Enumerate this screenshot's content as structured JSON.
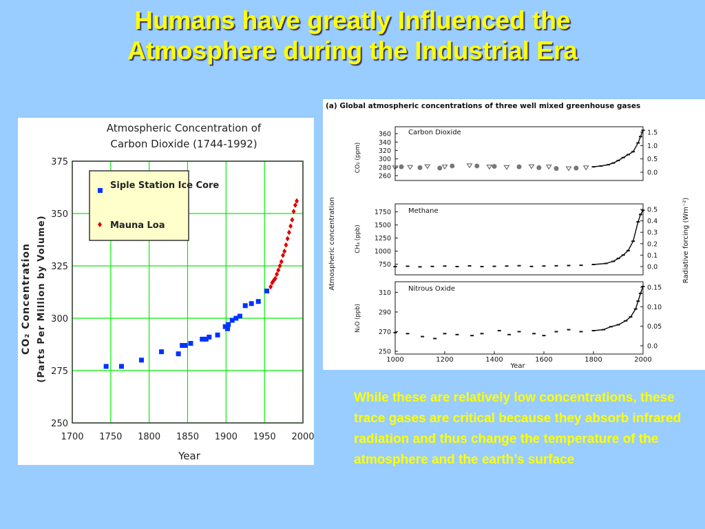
{
  "slide": {
    "title_line1": "Humans have greatly Influenced the",
    "title_line2": "Atmosphere during the Industrial Era",
    "caption": "While these are relatively low concentrations,  these trace gases are critical because they absorb infrared radiation and thus change the temperature of the atmosphere and the earth’s surface",
    "colors": {
      "background": "#99ccff",
      "title": "#ffff00",
      "caption": "#ffff00",
      "grid": "#00ee00"
    }
  },
  "chart_data": [
    {
      "type": "scatter",
      "title_line1": "Atmospheric Concentration of",
      "title_line2": "Carbon Dioxide (1744-1992)",
      "xlabel": "Year",
      "ylabel_line1": "CO₂  Concentration",
      "ylabel_line2": "(Parts Per Million by Volume)",
      "xlim": [
        1700,
        2000
      ],
      "ylim": [
        250,
        375
      ],
      "x_ticks": [
        "1700",
        "1750",
        "1800",
        "1850",
        "1900",
        "1950",
        "2000"
      ],
      "y_ticks": [
        "250",
        "275",
        "300",
        "325",
        "350",
        "375"
      ],
      "grid": true,
      "legend_position": "top-left",
      "series": [
        {
          "name": "Siple Station Ice Core",
          "color": "#0033ff",
          "marker": "square",
          "x": [
            1744,
            1764,
            1790,
            1816,
            1838,
            1843,
            1847,
            1854,
            1869,
            1874,
            1878,
            1889,
            1899,
            1902,
            1903,
            1908,
            1913,
            1918,
            1925,
            1933,
            1942,
            1953
          ],
          "y": [
            277,
            277,
            280,
            284,
            283,
            287,
            287,
            288,
            290,
            290,
            291,
            292,
            296,
            295,
            297,
            299,
            300,
            301,
            306,
            307,
            308,
            313
          ]
        },
        {
          "name": "Mauna Loa",
          "color": "#dd0000",
          "marker": "diamond",
          "x": [
            1958,
            1960,
            1962,
            1964,
            1966,
            1968,
            1970,
            1972,
            1974,
            1976,
            1978,
            1980,
            1982,
            1984,
            1986,
            1988,
            1990,
            1992
          ],
          "y": [
            315,
            317,
            318,
            319,
            321,
            323,
            325,
            327,
            330,
            332,
            335,
            338,
            341,
            344,
            347,
            351,
            354,
            356
          ]
        }
      ]
    },
    {
      "type": "line",
      "title": "(a) Global atmospheric concentrations of three well mixed greenhouse gases",
      "ylabel_left": "Atmospheric concentration",
      "ylabel_right": "Radiative forcing  (Wm⁻²)",
      "xlabel": "Year",
      "xlim": [
        1000,
        2000
      ],
      "x_ticks": [
        "1000",
        "1200",
        "1400",
        "1600",
        "1800",
        "2000"
      ],
      "panels": [
        {
          "name": "Carbon Dioxide",
          "ylabel": "CO₂ (ppm)",
          "ylim": [
            255,
            370
          ],
          "y_ticks": [
            "260",
            "280",
            "300",
            "320",
            "340",
            "360"
          ],
          "rf_ticks": [
            "0.0",
            "0.5",
            "1.0",
            "1.5"
          ],
          "x": [
            1000,
            1025,
            1060,
            1100,
            1130,
            1180,
            1200,
            1230,
            1300,
            1330,
            1380,
            1400,
            1450,
            1500,
            1550,
            1580,
            1620,
            1650,
            1700,
            1730,
            1770,
            1800,
            1830,
            1860,
            1880,
            1900,
            1920,
            1940,
            1960,
            1980,
            1990,
            2000
          ],
          "y": [
            279,
            281,
            280,
            279,
            282,
            278,
            281,
            283,
            284,
            283,
            281,
            282,
            280,
            281,
            282,
            279,
            281,
            277,
            277,
            278,
            279,
            281,
            283,
            286,
            290,
            296,
            303,
            310,
            317,
            338,
            353,
            368
          ]
        },
        {
          "name": "Methane",
          "ylabel": "CH₄ (ppb)",
          "ylim": [
            600,
            1850
          ],
          "y_ticks": [
            "750",
            "1000",
            "1250",
            "1500",
            "1750"
          ],
          "rf_ticks": [
            "0.0",
            "0.1",
            "0.2",
            "0.3",
            "0.4",
            "0.5"
          ],
          "x": [
            1000,
            1050,
            1100,
            1150,
            1200,
            1250,
            1300,
            1350,
            1400,
            1450,
            1500,
            1550,
            1600,
            1650,
            1700,
            1750,
            1800,
            1850,
            1880,
            1900,
            1920,
            1940,
            1960,
            1980,
            1990,
            2000
          ],
          "y": [
            705,
            712,
            700,
            708,
            715,
            705,
            718,
            705,
            710,
            715,
            722,
            708,
            716,
            720,
            725,
            730,
            745,
            765,
            805,
            860,
            925,
            1010,
            1190,
            1560,
            1700,
            1780
          ]
        },
        {
          "name": "Nitrous Oxide",
          "ylabel": "N₂O (ppb)",
          "ylim": [
            250,
            318
          ],
          "y_ticks": [
            "250",
            "270",
            "290",
            "310"
          ],
          "rf_ticks": [
            "0.0",
            "0.05",
            "0.10",
            "0.15"
          ],
          "x": [
            1000,
            1050,
            1110,
            1160,
            1200,
            1250,
            1310,
            1350,
            1420,
            1460,
            1500,
            1560,
            1600,
            1650,
            1700,
            1750,
            1800,
            1840,
            1870,
            1900,
            1930,
            1950,
            1970,
            1980,
            1990,
            2000
          ],
          "y": [
            269,
            268,
            265,
            263,
            268,
            267,
            266,
            268,
            271,
            267,
            270,
            268,
            266,
            270,
            272,
            270,
            271,
            272,
            275,
            277,
            281,
            285,
            293,
            301,
            309,
            316
          ]
        }
      ]
    }
  ]
}
